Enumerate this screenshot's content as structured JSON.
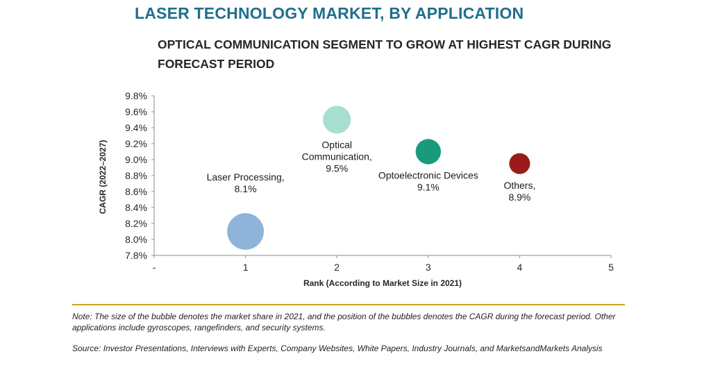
{
  "header": {
    "title": "LASER TECHNOLOGY MARKET, BY APPLICATION",
    "subtitle": "OPTICAL COMMUNICATION SEGMENT TO GROW AT HIGHEST CAGR DURING FORECAST PERIOD"
  },
  "footer": {
    "note": "Note: The size of the bubble denotes the market share in 2021, and the position of the bubbles denotes the CAGR during the forecast period. Other applications include gyroscopes, rangefinders, and security systems.",
    "source": "Source: Investor Presentations, Interviews with Experts, Company Websites, White Papers, Industry Journals, and MarketsandMarkets Analysis"
  },
  "chart_data": {
    "type": "scatter",
    "title": "",
    "xlabel": "Rank (According to Market Size in 2021)",
    "ylabel": "CAGR (2022–2027)",
    "xlim": [
      0,
      5
    ],
    "ylim": [
      7.8,
      9.8
    ],
    "x_tick_labels": [
      "-",
      "1",
      "2",
      "3",
      "4",
      "5"
    ],
    "y_tick_labels": [
      "7.8%",
      "8.0%",
      "8.2%",
      "8.4%",
      "8.6%",
      "8.8%",
      "9.0%",
      "9.2%",
      "9.4%",
      "9.6%",
      "9.8%"
    ],
    "grid": false,
    "series": [
      {
        "label": [
          "Laser Processing,",
          "8.1%"
        ],
        "x": 1,
        "y": 8.1,
        "bubble_size": 4,
        "color": "#8fb4d9"
      },
      {
        "label": [
          "Optical",
          "Communication,",
          "9.5%"
        ],
        "x": 2,
        "y": 9.5,
        "bubble_size": 2.3,
        "color": "#a6dfd2"
      },
      {
        "label": [
          "Optoelectronic Devices",
          "9.1%"
        ],
        "x": 3,
        "y": 9.1,
        "bubble_size": 1.9,
        "color": "#1a9a7c"
      },
      {
        "label": [
          "Others,",
          "8.9%"
        ],
        "x": 4,
        "y": 8.95,
        "bubble_size": 1.3,
        "color": "#9b1b1b"
      }
    ]
  }
}
